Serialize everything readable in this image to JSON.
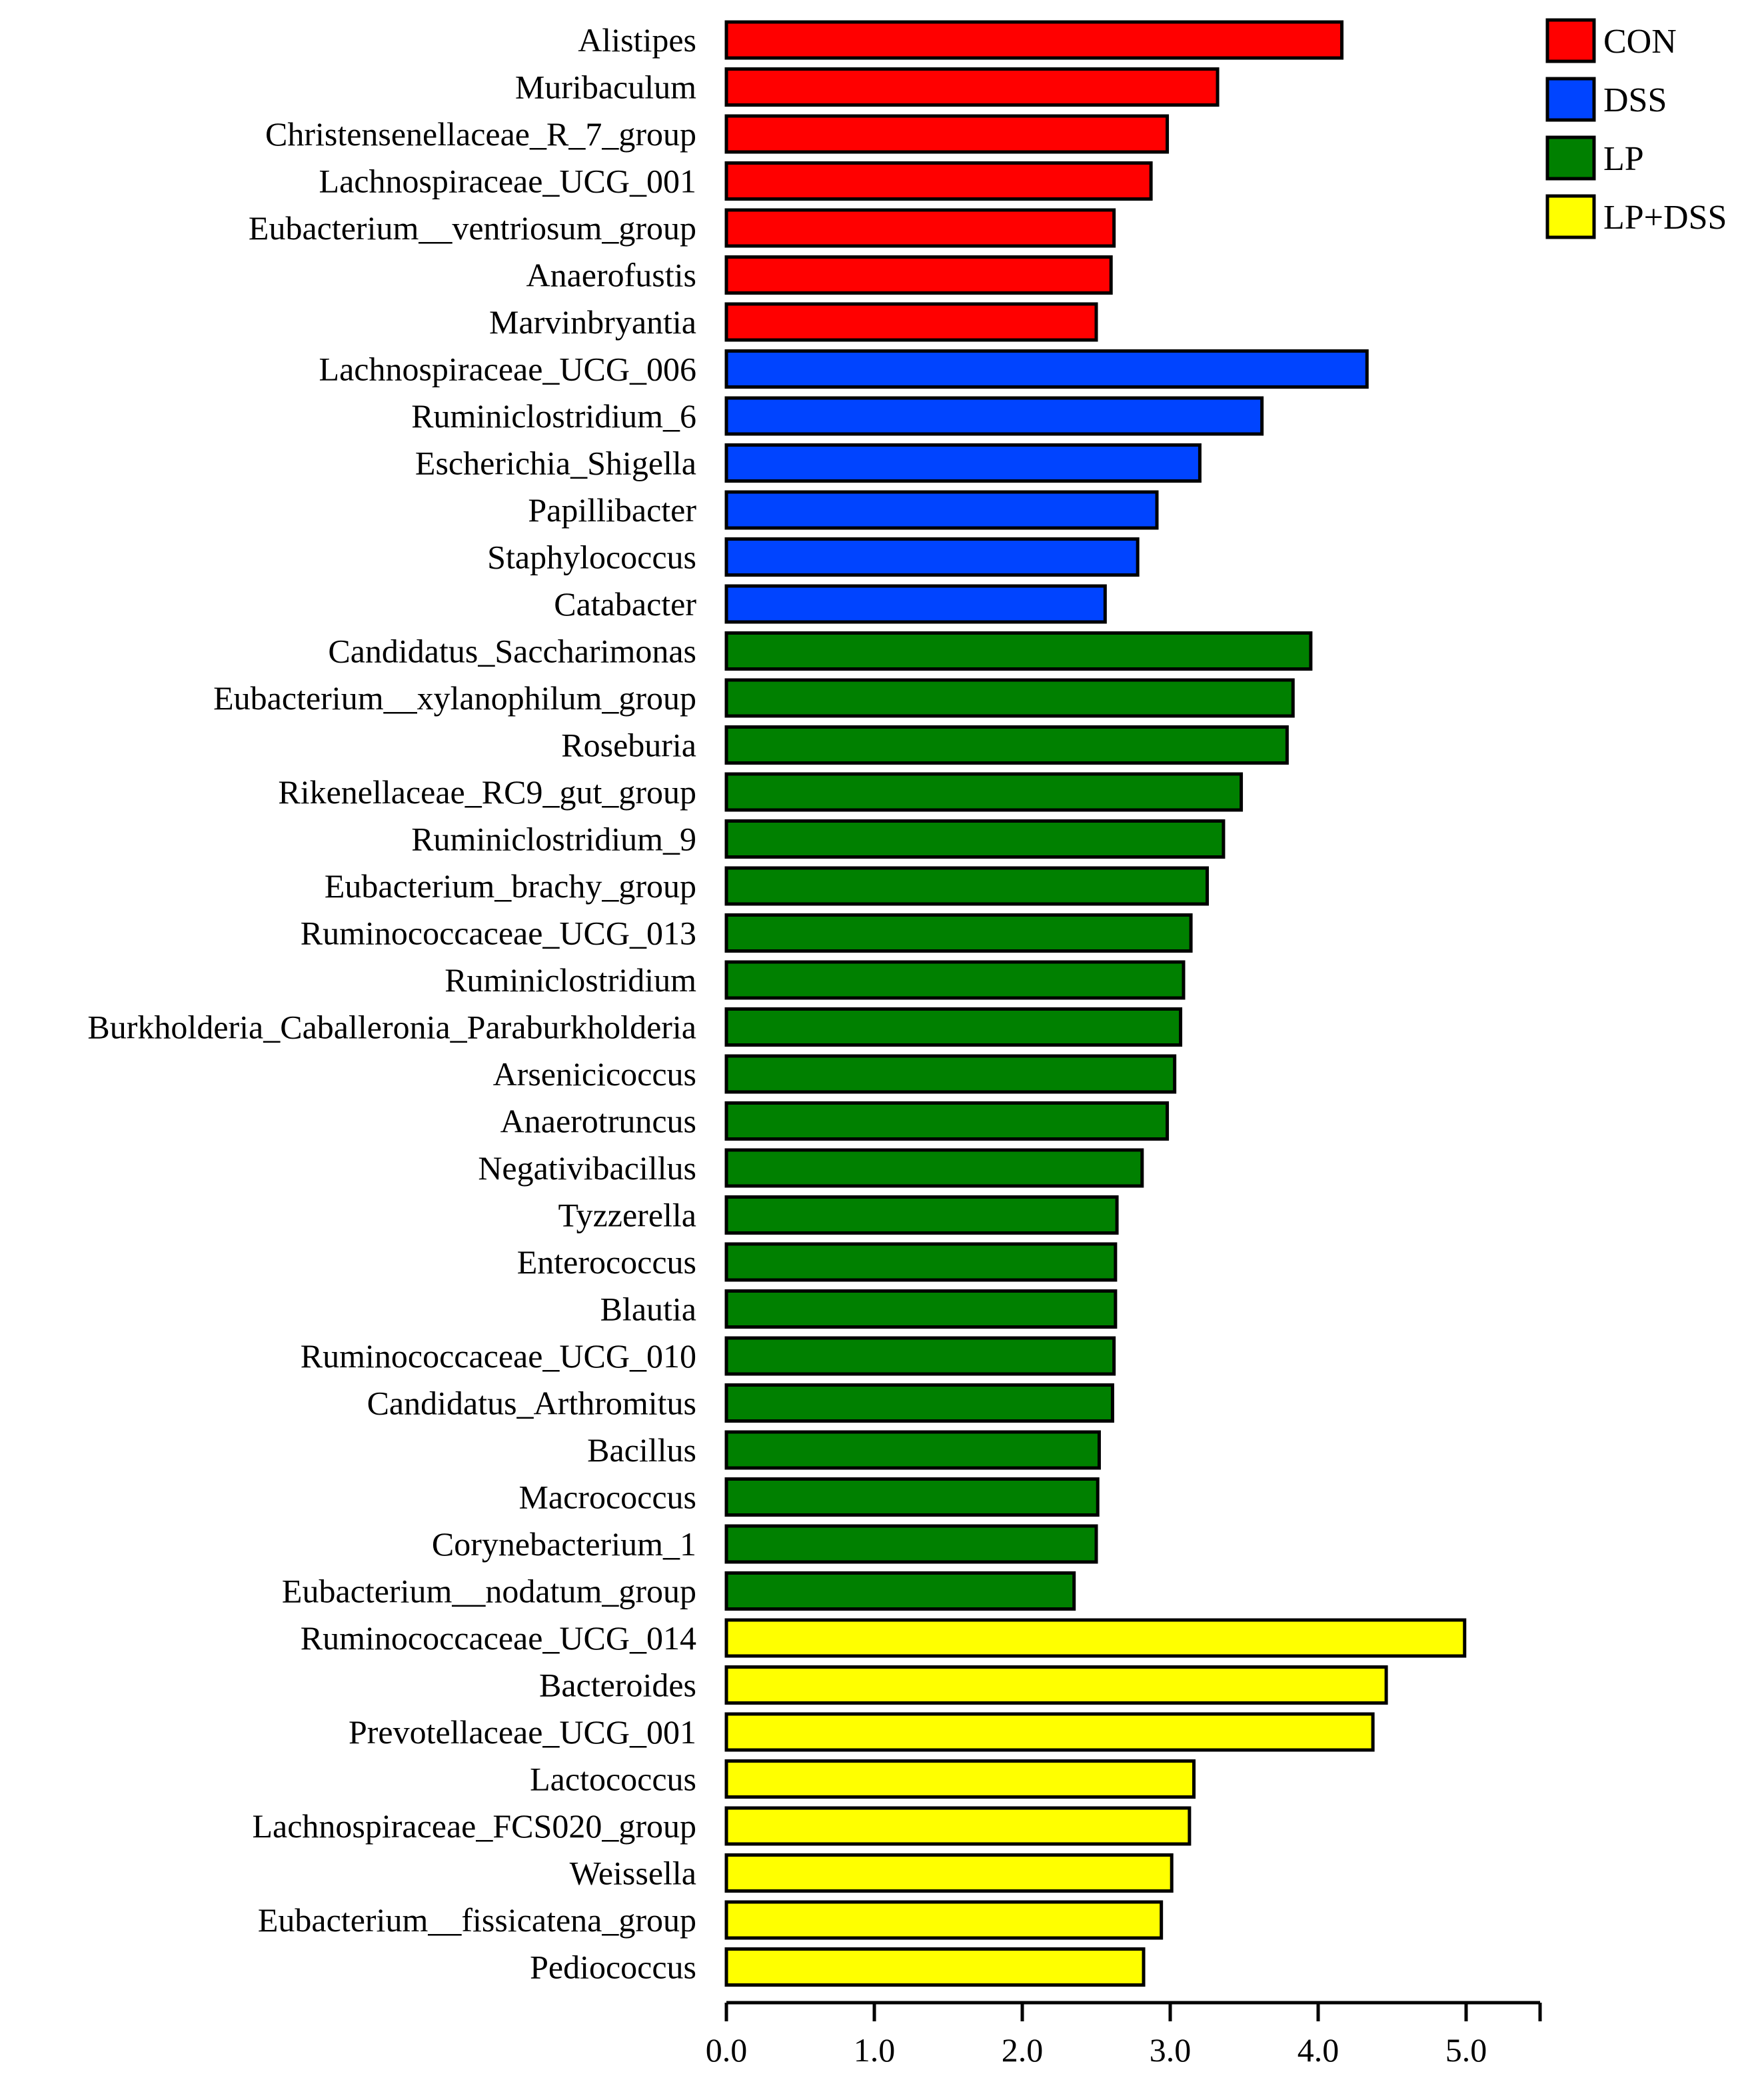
{
  "chart_data": {
    "type": "bar",
    "orientation": "horizontal",
    "title": "",
    "xlabel": "",
    "ylabel": "",
    "xlim": [
      0,
      5.5
    ],
    "x_ticks": [
      "0.0",
      "1.0",
      "2.0",
      "3.0",
      "4.0",
      "5.0"
    ],
    "grid": false,
    "legend_position": "top-right",
    "groups": [
      {
        "name": "CON",
        "color": "#ff0000"
      },
      {
        "name": "DSS",
        "color": "#0044ff"
      },
      {
        "name": "LP",
        "color": "#008000"
      },
      {
        "name": "LP+DSS",
        "color": "#ffff00"
      }
    ],
    "bars": [
      {
        "label": "Alistipes",
        "value": 4.16,
        "group": "CON"
      },
      {
        "label": "Muribaculum",
        "value": 3.32,
        "group": "CON"
      },
      {
        "label": "Christensenellaceae_R_7_group",
        "value": 2.98,
        "group": "CON"
      },
      {
        "label": "Lachnospiraceae_UCG_001",
        "value": 2.87,
        "group": "CON"
      },
      {
        "label": "Eubacterium__ventriosum_group",
        "value": 2.62,
        "group": "CON"
      },
      {
        "label": "Anaerofustis",
        "value": 2.6,
        "group": "CON"
      },
      {
        "label": "Marvinbryantia",
        "value": 2.5,
        "group": "CON"
      },
      {
        "label": "Lachnospiraceae_UCG_006",
        "value": 4.33,
        "group": "DSS"
      },
      {
        "label": "Ruminiclostridium_6",
        "value": 3.62,
        "group": "DSS"
      },
      {
        "label": "Escherichia_Shigella",
        "value": 3.2,
        "group": "DSS"
      },
      {
        "label": "Papillibacter",
        "value": 2.91,
        "group": "DSS"
      },
      {
        "label": "Staphylococcus",
        "value": 2.78,
        "group": "DSS"
      },
      {
        "label": "Catabacter",
        "value": 2.56,
        "group": "DSS"
      },
      {
        "label": "Candidatus_Saccharimonas",
        "value": 3.95,
        "group": "LP"
      },
      {
        "label": "Eubacterium__xylanophilum_group",
        "value": 3.83,
        "group": "LP"
      },
      {
        "label": "Roseburia",
        "value": 3.79,
        "group": "LP"
      },
      {
        "label": "Rikenellaceae_RC9_gut_group",
        "value": 3.48,
        "group": "LP"
      },
      {
        "label": "Ruminiclostridium_9",
        "value": 3.36,
        "group": "LP"
      },
      {
        "label": "Eubacterium_brachy_group",
        "value": 3.25,
        "group": "LP"
      },
      {
        "label": "Ruminococcaceae_UCG_013",
        "value": 3.14,
        "group": "LP"
      },
      {
        "label": "Ruminiclostridium",
        "value": 3.09,
        "group": "LP"
      },
      {
        "label": "Burkholderia_Caballeronia_Paraburkholderia",
        "value": 3.07,
        "group": "LP"
      },
      {
        "label": "Arsenicicoccus",
        "value": 3.03,
        "group": "LP"
      },
      {
        "label": "Anaerotruncus",
        "value": 2.98,
        "group": "LP"
      },
      {
        "label": "Negativibacillus",
        "value": 2.81,
        "group": "LP"
      },
      {
        "label": "Tyzzerella",
        "value": 2.64,
        "group": "LP"
      },
      {
        "label": "Enterococcus",
        "value": 2.63,
        "group": "LP"
      },
      {
        "label": "Blautia",
        "value": 2.63,
        "group": "LP"
      },
      {
        "label": "Ruminococcaceae_UCG_010",
        "value": 2.62,
        "group": "LP"
      },
      {
        "label": "Candidatus_Arthromitus",
        "value": 2.61,
        "group": "LP"
      },
      {
        "label": "Bacillus",
        "value": 2.52,
        "group": "LP"
      },
      {
        "label": "Macrococcus",
        "value": 2.51,
        "group": "LP"
      },
      {
        "label": "Corynebacterium_1",
        "value": 2.5,
        "group": "LP"
      },
      {
        "label": "Eubacterium__nodatum_group",
        "value": 2.35,
        "group": "LP"
      },
      {
        "label": "Ruminococcaceae_UCG_014",
        "value": 4.99,
        "group": "LP+DSS"
      },
      {
        "label": "Bacteroides",
        "value": 4.46,
        "group": "LP+DSS"
      },
      {
        "label": "Prevotellaceae_UCG_001",
        "value": 4.37,
        "group": "LP+DSS"
      },
      {
        "label": "Lactococcus",
        "value": 3.16,
        "group": "LP+DSS"
      },
      {
        "label": "Lachnospiraceae_FCS020_group",
        "value": 3.13,
        "group": "LP+DSS"
      },
      {
        "label": "Weissella",
        "value": 3.01,
        "group": "LP+DSS"
      },
      {
        "label": "Eubacterium__fissicatena_group",
        "value": 2.94,
        "group": "LP+DSS"
      },
      {
        "label": "Pediococcus",
        "value": 2.82,
        "group": "LP+DSS"
      }
    ]
  }
}
